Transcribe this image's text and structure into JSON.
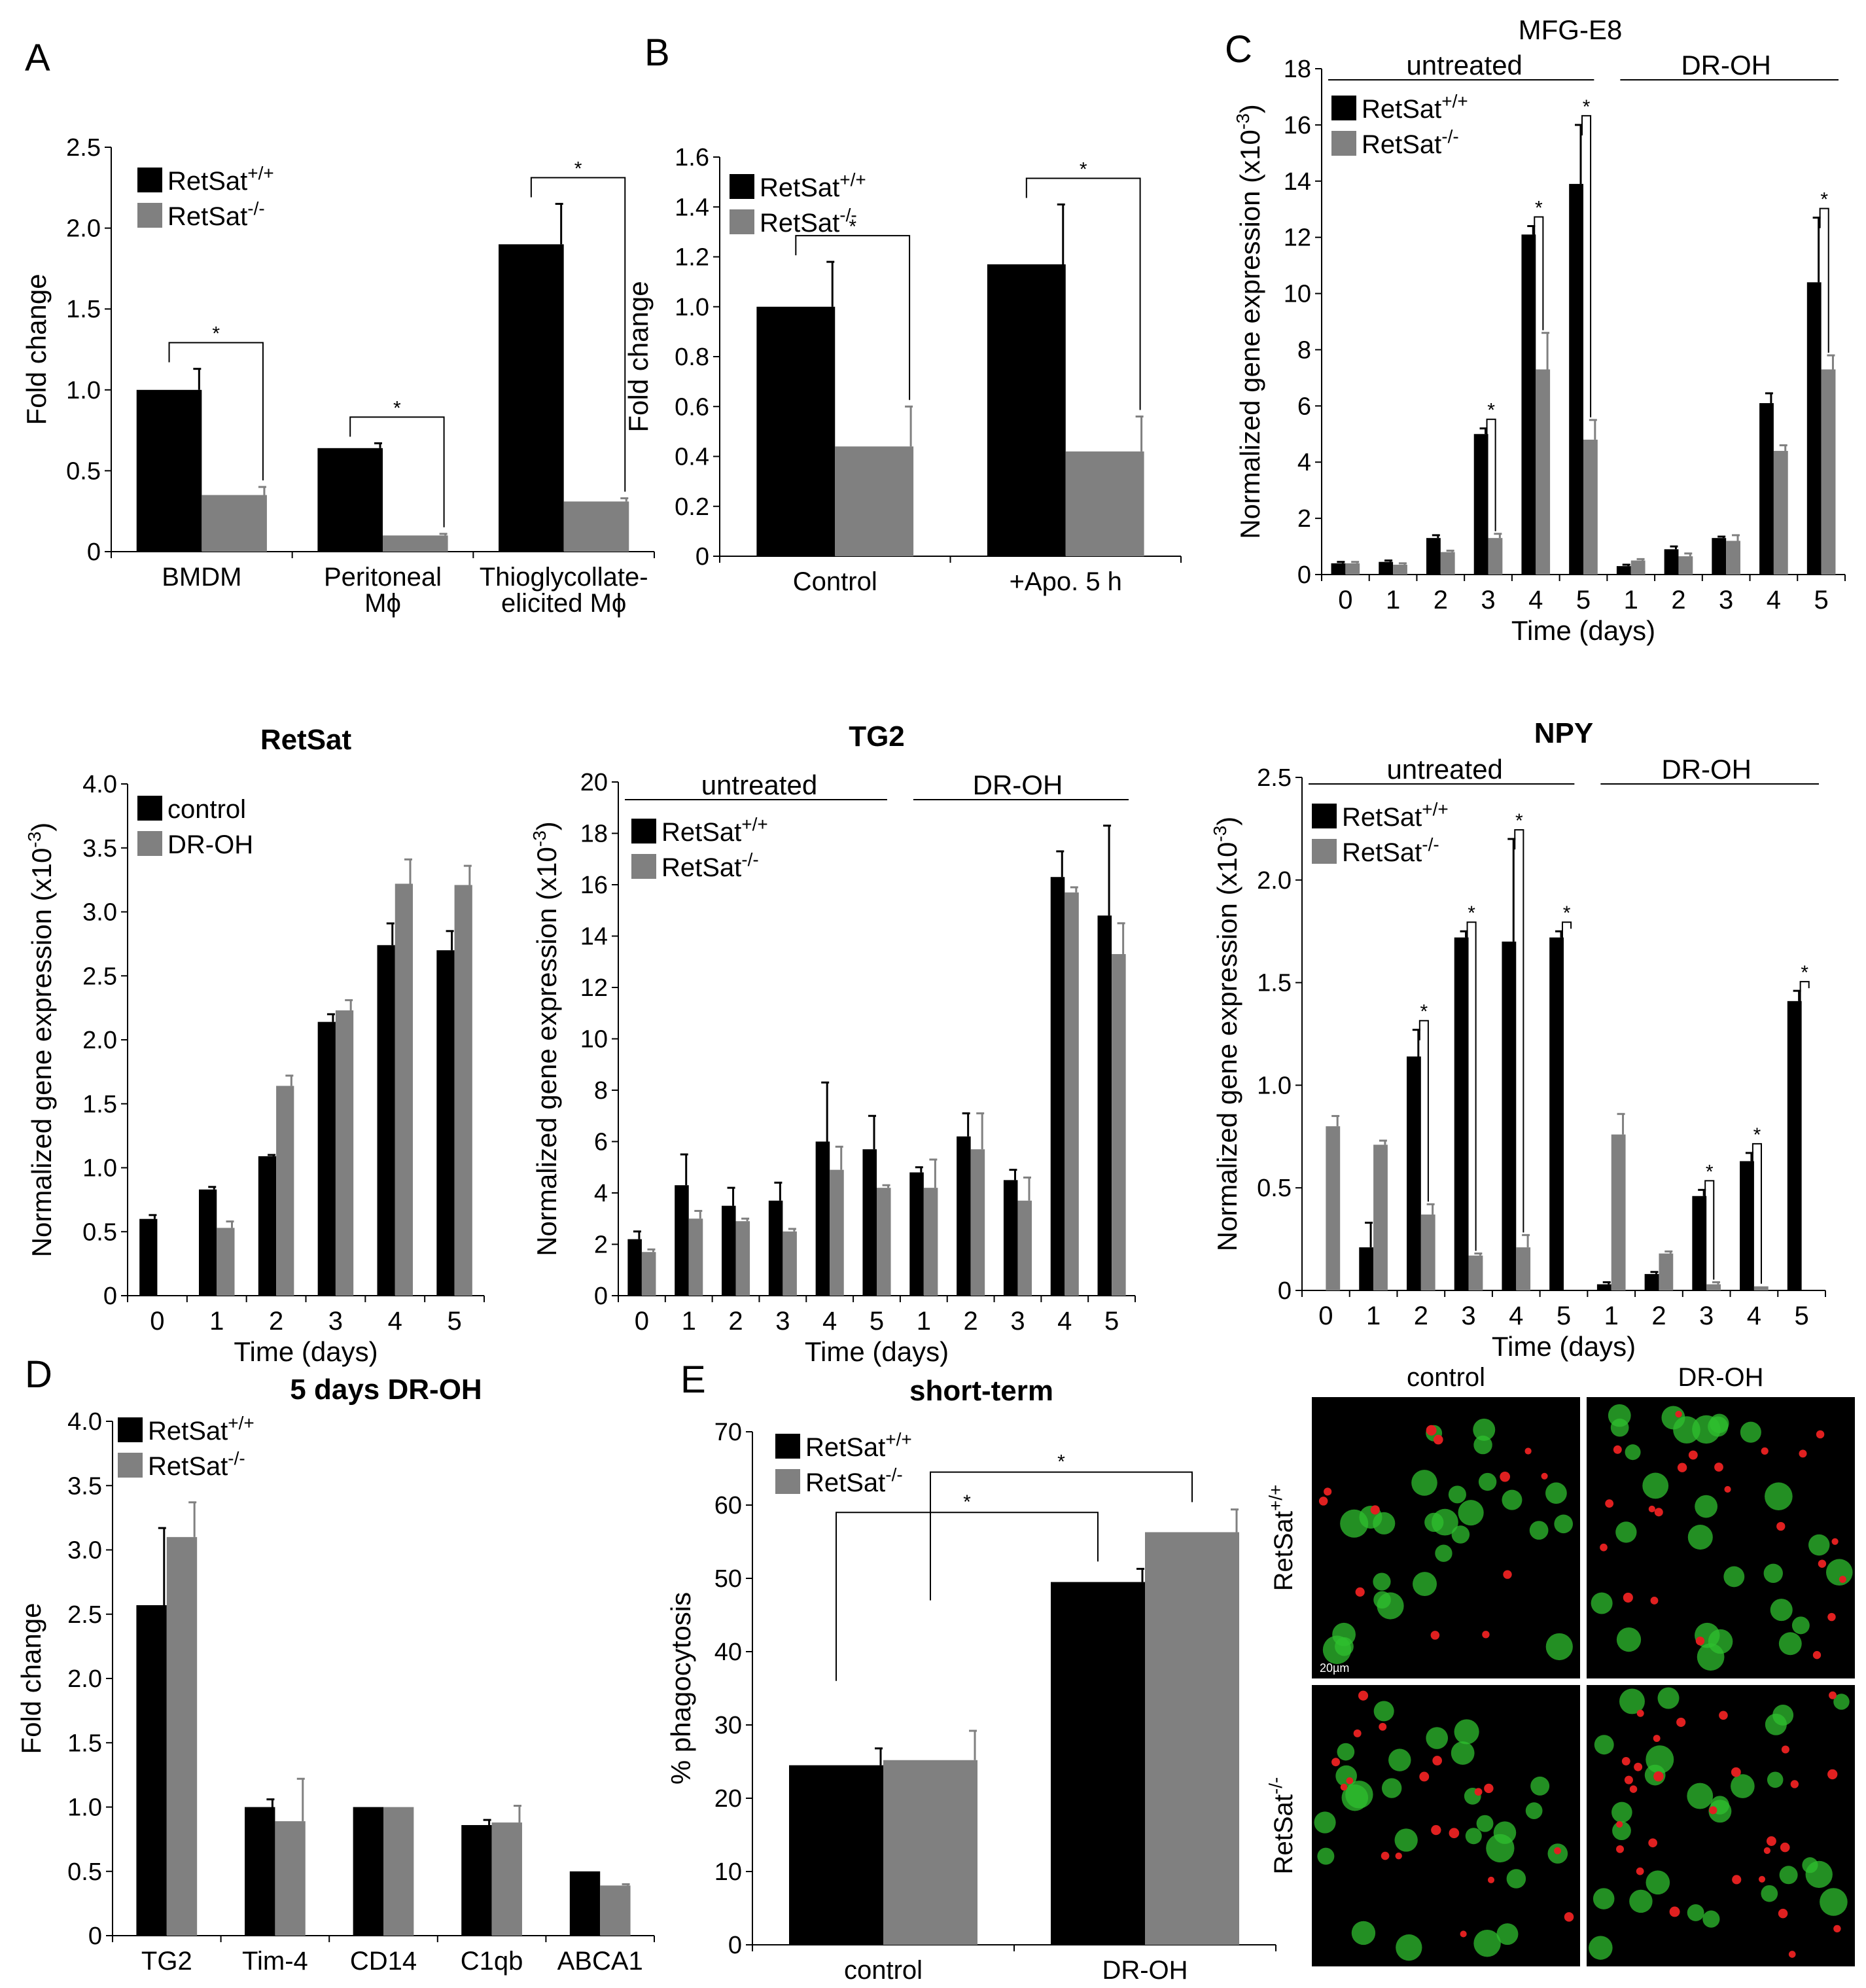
{
  "colors": {
    "wt": "#000000",
    "ko": "#808080",
    "cell_green": "#2fbf2f",
    "cell_red": "#e02020",
    "micro_bg": "#000000"
  },
  "legend": {
    "wt_base": "RetSat",
    "wt_sup": "+/+",
    "ko_base": "RetSat",
    "ko_sup": "-/-",
    "control": "control",
    "drOH": "DR-OH"
  },
  "labels": {
    "fold_change": "Fold change",
    "norm_expr_base": "Normalized gene expression (x10",
    "norm_expr_sup": "-3",
    "norm_expr_end": ")",
    "norm_expr_plain": "Normalized gene expression",
    "time_days": "Time (days)",
    "pct_phago": "% phagocytosis",
    "untreated": "untreated",
    "drOH": "DR-OH",
    "star": "*"
  },
  "chart_data": [
    {
      "id": "A",
      "type": "bar",
      "panel": "A",
      "title": "",
      "xlabel": "",
      "ylabel": "Fold change",
      "ylim": [
        0,
        2.5
      ],
      "yticks": [
        "0",
        "0.5",
        "1.0",
        "1.5",
        "2.0",
        "2.5"
      ],
      "categories": [
        "BMDM",
        "Peritoneal\nMϕ",
        "Thioglycollate-\nelicited Mϕ"
      ],
      "series": [
        {
          "name": "RetSat+/+",
          "values": [
            1.0,
            0.64,
            1.9
          ],
          "errors": [
            0.13,
            0.03,
            0.25
          ]
        },
        {
          "name": "RetSat-/-",
          "values": [
            0.35,
            0.1,
            0.31
          ],
          "errors": [
            0.05,
            0.01,
            0.02
          ]
        }
      ],
      "significance": [
        "*",
        "*",
        "*"
      ]
    },
    {
      "id": "B",
      "type": "bar",
      "panel": "B",
      "title": "",
      "xlabel": "",
      "ylabel": "Fold change",
      "ylim": [
        0,
        1.6
      ],
      "yticks": [
        "0",
        "0.2",
        "0.4",
        "0.6",
        "0.8",
        "1.0",
        "1.2",
        "1.4",
        "1.6"
      ],
      "categories": [
        "Control",
        "+Apo. 5 h"
      ],
      "series": [
        {
          "name": "RetSat+/+",
          "values": [
            1.0,
            1.17
          ],
          "errors": [
            0.18,
            0.24
          ]
        },
        {
          "name": "RetSat-/-",
          "values": [
            0.44,
            0.42
          ],
          "errors": [
            0.16,
            0.14
          ]
        }
      ],
      "significance": [
        "*",
        "*"
      ]
    },
    {
      "id": "C",
      "type": "bar",
      "panel": "C",
      "title": "MFG-E8",
      "xlabel": "Time (days)",
      "ylabel": "Normalized gene expression (x10-3)",
      "ylim": [
        0,
        18
      ],
      "yticks": [
        "0",
        "2",
        "4",
        "6",
        "8",
        "10",
        "12",
        "14",
        "16",
        "18"
      ],
      "categories": [
        "0",
        "1",
        "2",
        "3",
        "4",
        "5",
        "1",
        "2",
        "3",
        "4",
        "5"
      ],
      "series": [
        {
          "name": "RetSat+/+",
          "values": [
            0.4,
            0.45,
            1.3,
            5.0,
            12.1,
            13.9,
            0.3,
            0.9,
            1.3,
            6.1,
            10.4
          ],
          "errors": [
            0.05,
            0.05,
            0.1,
            0.2,
            0.3,
            2.1,
            0.05,
            0.1,
            0.05,
            0.35,
            2.3
          ]
        },
        {
          "name": "RetSat-/-",
          "values": [
            0.4,
            0.35,
            0.8,
            1.3,
            7.3,
            4.8,
            0.5,
            0.65,
            1.2,
            4.4,
            7.3
          ],
          "errors": [
            0.05,
            0.05,
            0.05,
            0.15,
            1.3,
            0.7,
            0.05,
            0.1,
            0.2,
            0.2,
            0.5
          ]
        }
      ],
      "groups": [
        "untreated",
        "DR-OH"
      ],
      "significance_idx": [
        3,
        4,
        5,
        10
      ]
    },
    {
      "id": "RetSat",
      "type": "bar",
      "panel": "",
      "title": "RetSat",
      "xlabel": "Time (days)",
      "ylabel": "Normalized gene expression (x10-3)",
      "ylim": [
        0,
        4.0
      ],
      "yticks": [
        "0",
        "0.5",
        "1.0",
        "1.5",
        "2.0",
        "2.5",
        "3.0",
        "3.5",
        "4.0"
      ],
      "categories": [
        "0",
        "1",
        "2",
        "3",
        "4",
        "5"
      ],
      "series": [
        {
          "name": "control",
          "values": [
            0.6,
            0.83,
            1.09,
            2.14,
            2.74,
            2.7
          ],
          "errors": [
            0.03,
            0.02,
            0.01,
            0.06,
            0.17,
            0.15
          ]
        },
        {
          "name": "DR-OH",
          "values": [
            null,
            0.53,
            1.64,
            2.23,
            3.22,
            3.21
          ],
          "errors": [
            0,
            0.05,
            0.08,
            0.08,
            0.19,
            0.15
          ]
        }
      ]
    },
    {
      "id": "TG2",
      "type": "bar",
      "panel": "",
      "title": "TG2",
      "xlabel": "Time (days)",
      "ylabel": "Normalized gene expression (x10-3)",
      "ylim": [
        0,
        20
      ],
      "yticks": [
        "0",
        "2",
        "4",
        "6",
        "8",
        "10",
        "12",
        "14",
        "16",
        "18",
        "20"
      ],
      "categories": [
        "0",
        "1",
        "2",
        "3",
        "4",
        "5",
        "1",
        "2",
        "3",
        "4",
        "5"
      ],
      "series": [
        {
          "name": "RetSat+/+",
          "values": [
            2.2,
            4.3,
            3.5,
            3.7,
            6.0,
            5.7,
            4.8,
            6.2,
            4.5,
            16.3,
            14.8
          ],
          "errors": [
            0.3,
            1.2,
            0.7,
            0.7,
            2.3,
            1.3,
            0.2,
            0.9,
            0.4,
            1.0,
            3.5
          ]
        },
        {
          "name": "RetSat-/-",
          "values": [
            1.7,
            3.0,
            2.9,
            2.5,
            4.9,
            4.2,
            4.2,
            5.7,
            3.7,
            15.7,
            13.3
          ],
          "errors": [
            0.1,
            0.3,
            0.1,
            0.1,
            0.9,
            0.1,
            1.1,
            1.4,
            0.9,
            0.2,
            1.2
          ]
        }
      ],
      "groups": [
        "untreated",
        "DR-OH"
      ]
    },
    {
      "id": "NPY",
      "type": "bar",
      "panel": "",
      "title": "NPY",
      "xlabel": "Time (days)",
      "ylabel": "Normalized gene expression (x10-3)",
      "ylim": [
        0,
        2.5
      ],
      "yticks": [
        "0",
        "0.5",
        "1.0",
        "1.5",
        "2.0",
        "2.5"
      ],
      "categories": [
        "0",
        "1",
        "2",
        "3",
        "4",
        "5",
        "1",
        "2",
        "3",
        "4",
        "5"
      ],
      "series": [
        {
          "name": "RetSat+/+",
          "values": [
            null,
            0.21,
            1.14,
            1.72,
            1.7,
            1.72,
            0.03,
            0.08,
            0.46,
            0.63,
            1.41
          ],
          "errors": [
            0,
            0.12,
            0.13,
            0.03,
            0.5,
            0.03,
            0.01,
            0.01,
            0.03,
            0.04,
            0.05
          ]
        },
        {
          "name": "RetSat-/-",
          "values": [
            0.8,
            0.71,
            0.37,
            0.17,
            0.21,
            null,
            0.76,
            0.18,
            0.03,
            0.02,
            null
          ],
          "errors": [
            0.05,
            0.02,
            0.05,
            0.01,
            0.06,
            0,
            0.1,
            0.01,
            0.01,
            0.0,
            0
          ]
        }
      ],
      "groups": [
        "untreated",
        "DR-OH"
      ],
      "significance_idx": [
        2,
        3,
        4,
        5,
        8,
        9,
        10
      ]
    },
    {
      "id": "D",
      "type": "bar",
      "panel": "D",
      "title": "5 days DR-OH",
      "xlabel": "",
      "ylabel": "Fold change",
      "ylim": [
        0,
        4.0
      ],
      "yticks": [
        "0",
        "0.5",
        "1.0",
        "1.5",
        "2.0",
        "2.5",
        "3.0",
        "3.5",
        "4.0"
      ],
      "categories": [
        "TG2",
        "Tim-4",
        "CD14",
        "C1qb",
        "ABCA1"
      ],
      "series": [
        {
          "name": "RetSat+/+",
          "values": [
            2.57,
            1.0,
            1.0,
            0.86,
            0.5
          ],
          "errors": [
            0.6,
            0.06,
            0.0,
            0.04,
            0.0
          ]
        },
        {
          "name": "RetSat-/-",
          "values": [
            3.1,
            0.89,
            1.0,
            0.88,
            0.39
          ],
          "errors": [
            0.27,
            0.33,
            0.0,
            0.13,
            0.01
          ]
        }
      ]
    },
    {
      "id": "E",
      "type": "bar",
      "panel": "E",
      "title": "short-term",
      "xlabel": "",
      "ylabel": "% phagocytosis",
      "ylim": [
        0,
        70
      ],
      "yticks": [
        "0",
        "10",
        "20",
        "30",
        "40",
        "50",
        "60",
        "70"
      ],
      "categories": [
        "control",
        "DR-OH"
      ],
      "series": [
        {
          "name": "RetSat+/+",
          "values": [
            24.5,
            49.5
          ],
          "errors": [
            2.3,
            1.8
          ]
        },
        {
          "name": "RetSat-/-",
          "values": [
            25.2,
            56.3
          ],
          "errors": [
            4.0,
            3.1
          ]
        }
      ]
    }
  ],
  "micrographs": {
    "col_labels": [
      "control",
      "DR-OH"
    ],
    "row_labels": [
      "RetSat",
      "RetSat"
    ],
    "row_sups": [
      "+/+",
      "-/-"
    ],
    "scale_label": "20µm"
  }
}
